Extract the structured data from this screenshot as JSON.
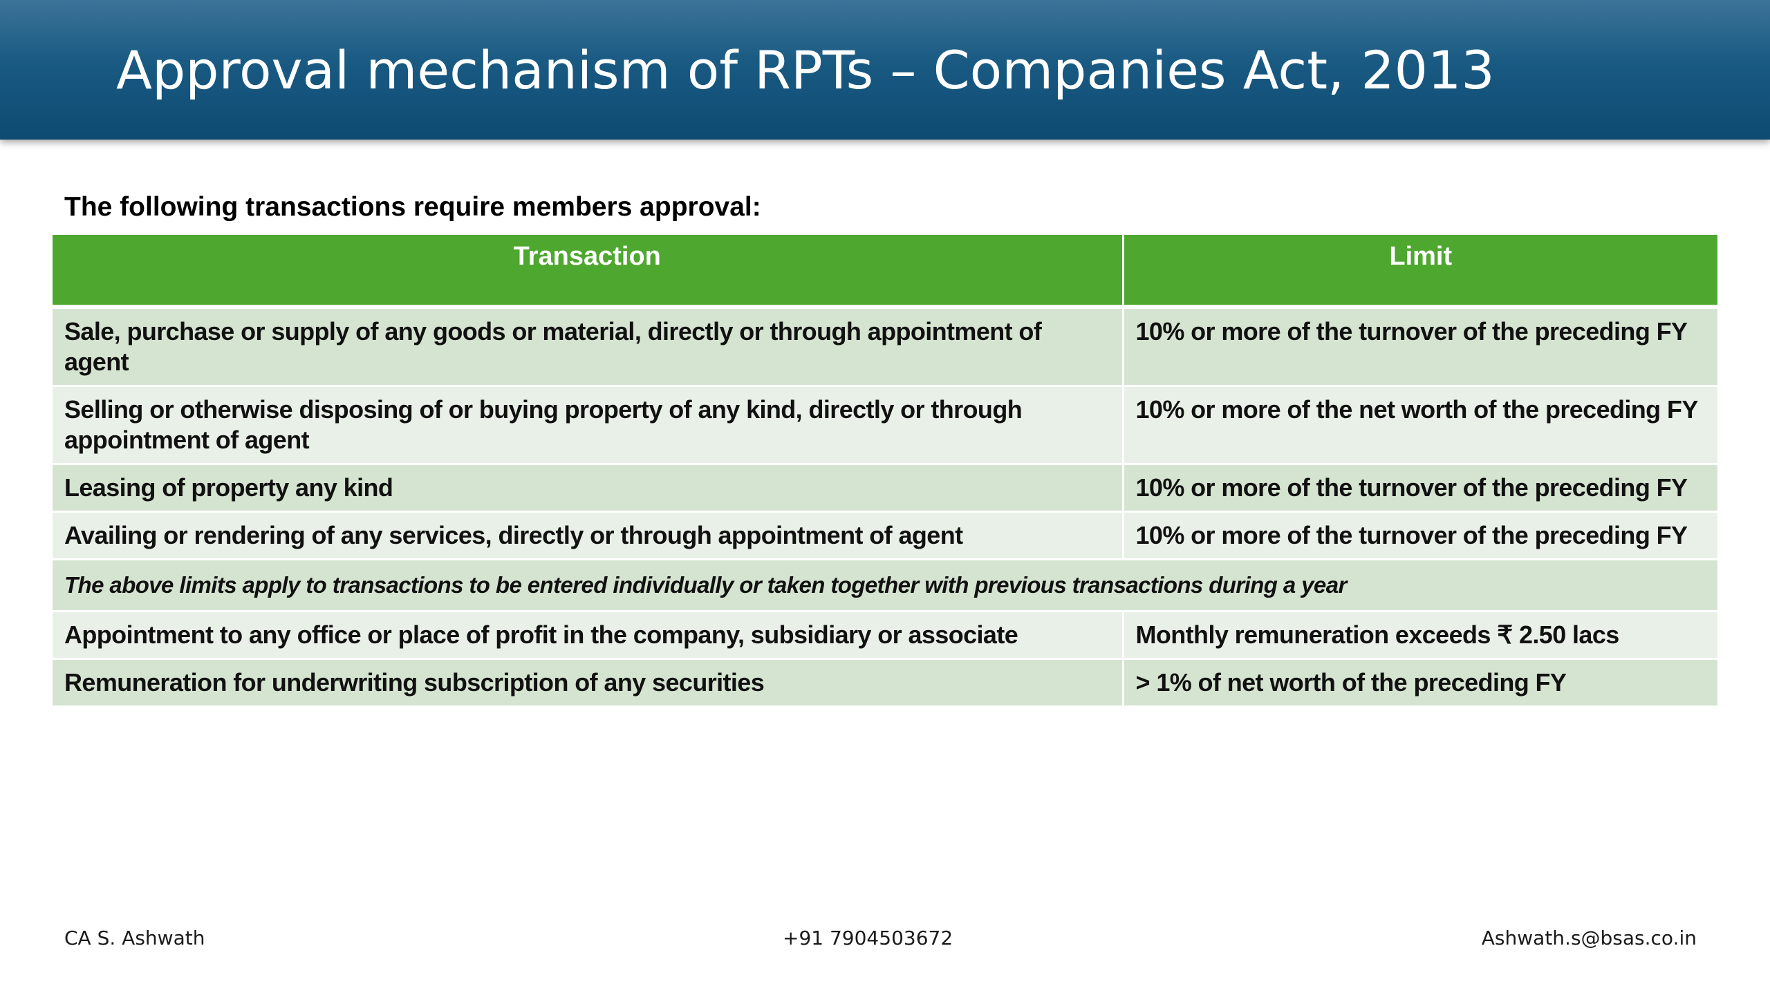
{
  "slide": {
    "title": "Approval mechanism of RPTs – Companies Act, 2013",
    "intro": "The following transactions require members approval:"
  },
  "table": {
    "headers": [
      "Transaction",
      "Limit"
    ],
    "rows": [
      {
        "transaction": "Sale, purchase or supply of any goods or material, directly or through appointment of agent",
        "limit": "10% or more of the turnover of the preceding FY"
      },
      {
        "transaction": "Selling or otherwise disposing of or buying property of any kind, directly or through appointment of agent",
        "limit": "10% or more of the net worth of the preceding FY"
      },
      {
        "transaction": "Leasing of property any kind",
        "limit": "10% or more of the turnover of the preceding FY"
      },
      {
        "transaction": "Availing or rendering of any services, directly or through appointment of agent",
        "limit": "10% or more of the turnover of the preceding FY"
      },
      {
        "note": "The above limits apply to transactions to be entered individually or taken together with previous transactions during a year"
      },
      {
        "transaction": "Appointment to any office or place of profit in the company, subsidiary or associate",
        "limit": "Monthly remuneration exceeds ₹ 2.50 lacs"
      },
      {
        "transaction": "Remuneration for underwriting subscription of any securities",
        "limit": "> 1% of net worth of the preceding FY"
      }
    ]
  },
  "footer": {
    "name": "CA S. Ashwath",
    "phone": "+91 7904503672",
    "email": "Ashwath.s@bsas.co.in"
  },
  "colors": {
    "header_band": "#195a82",
    "table_header": "#4ea72e",
    "row_odd": "#d5e4d1",
    "row_even": "#e9f0e7"
  }
}
